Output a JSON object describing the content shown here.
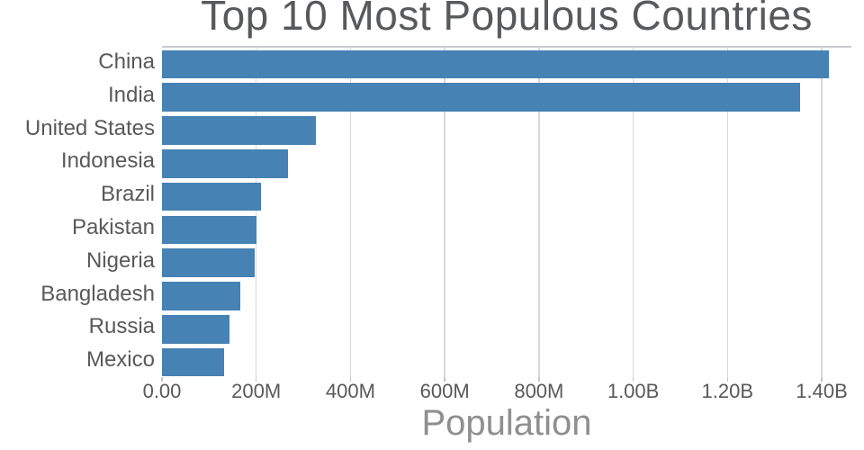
{
  "chart_data": {
    "type": "bar",
    "orientation": "horizontal",
    "title": "Top 10 Most Populous Countries",
    "xlabel": "Population",
    "ylabel": "",
    "categories": [
      "China",
      "India",
      "United States",
      "Indonesia",
      "Brazil",
      "Pakistan",
      "Nigeria",
      "Bangladesh",
      "Russia",
      "Mexico"
    ],
    "values": [
      1415000000,
      1354000000,
      327000000,
      267000000,
      211000000,
      201000000,
      196000000,
      166000000,
      144000000,
      131000000
    ],
    "series_name": "Population",
    "xlim": [
      0,
      1463000000
    ],
    "x_ticks": [
      {
        "value": 0,
        "label": "0.00"
      },
      {
        "value": 200000000,
        "label": "200M"
      },
      {
        "value": 400000000,
        "label": "400M"
      },
      {
        "value": 600000000,
        "label": "600M"
      },
      {
        "value": 800000000,
        "label": "800M"
      },
      {
        "value": 1000000000,
        "label": "1.00B"
      },
      {
        "value": 1200000000,
        "label": "1.20B"
      },
      {
        "value": 1400000000,
        "label": "1.40B"
      }
    ],
    "grid": {
      "vertical": true,
      "horizontal": false
    },
    "legend": "none",
    "colors": {
      "bar": "#4682B4",
      "gridline": "#d9d9d9",
      "tick": "#c8c8c8",
      "plot_border_top": "#c6ccd2",
      "title_text": "#58595b",
      "axis_text": "#595959",
      "xlabel_text": "#8f8f8f",
      "background": "#ffffff"
    }
  }
}
